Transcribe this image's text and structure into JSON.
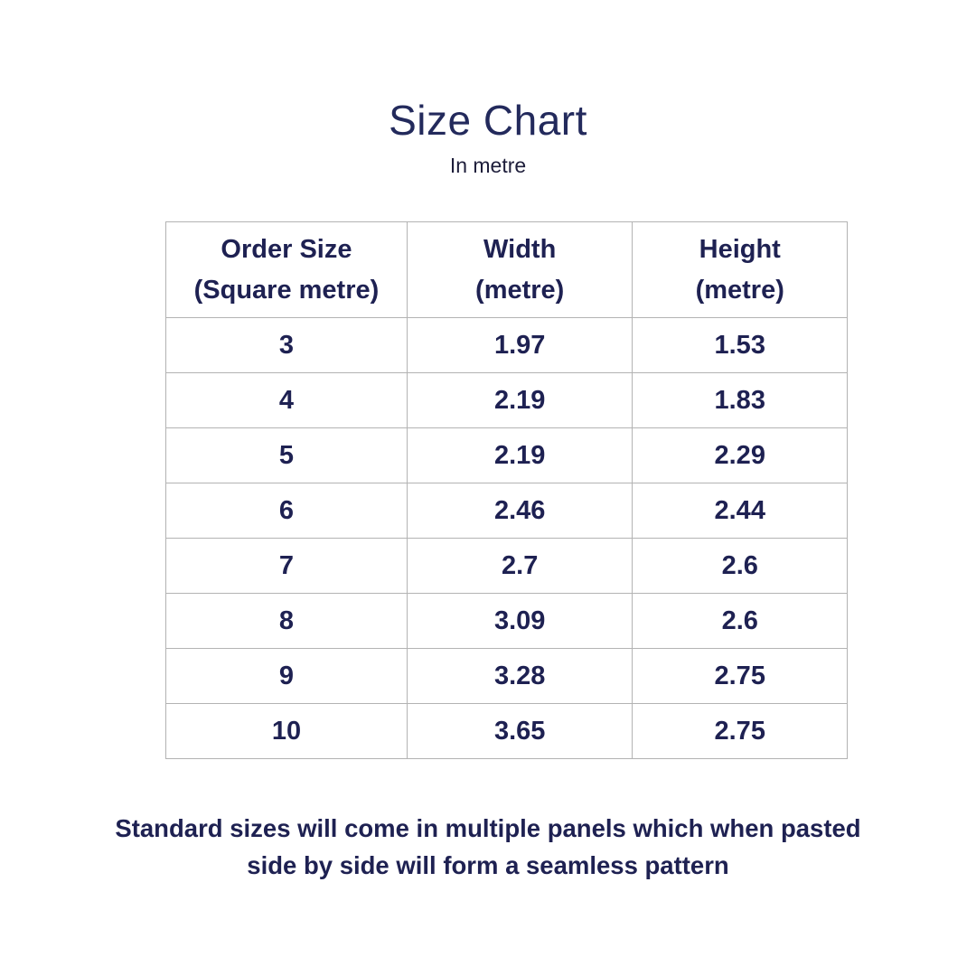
{
  "page": {
    "title": "Size Chart",
    "subtitle": "In metre",
    "footer_note": "Standard sizes  will come in multiple panels which when pasted side by side will form a seamless pattern"
  },
  "colors": {
    "background": "#ffffff",
    "text_navy": "#1e2152",
    "title_navy": "#232a5c",
    "table_border": "#b3b3b3"
  },
  "chart_data": {
    "type": "table",
    "title": "Size Chart",
    "subtitle": "In metre",
    "units": "metre",
    "headers": [
      "Order Size\n(Square metre)",
      "Width\n(metre)",
      "Height\n(metre)"
    ],
    "rows": [
      [
        "3",
        "1.97",
        "1.53"
      ],
      [
        "4",
        "2.19",
        "1.83"
      ],
      [
        "5",
        "2.19",
        "2.29"
      ],
      [
        "6",
        "2.46",
        "2.44"
      ],
      [
        "7",
        "2.7",
        "2.6"
      ],
      [
        "8",
        "3.09",
        "2.6"
      ],
      [
        "9",
        "3.28",
        "2.75"
      ],
      [
        "10",
        "3.65",
        "2.75"
      ]
    ],
    "footer_note": "Standard sizes  will come in multiple panels which when pasted side by side will form a seamless pattern"
  }
}
